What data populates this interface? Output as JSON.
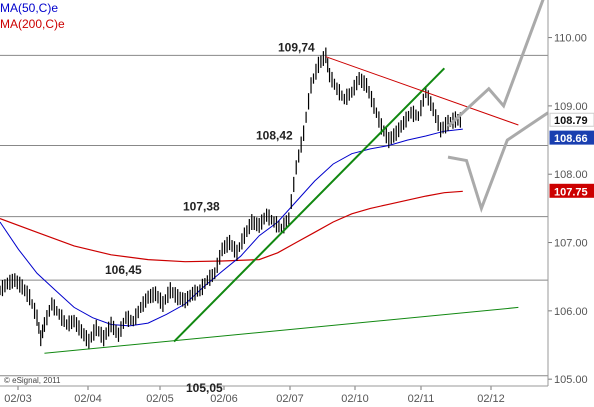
{
  "chart_data": {
    "type": "candlestick",
    "legend": [
      {
        "name": "MA(50,C)e",
        "color": "#0000cc"
      },
      {
        "name": "MA(200,C)e",
        "color": "#cc0000"
      }
    ],
    "x_ticks": [
      "02/03",
      "02/04",
      "02/05",
      "02/06",
      "02/07",
      "02/10",
      "02/11",
      "02/12"
    ],
    "y_ticks": [
      "105.00",
      "106.00",
      "107.00",
      "108.00",
      "109.00",
      "110.00"
    ],
    "ylim": [
      104.9,
      110.55
    ],
    "credit": "© eSignal, 2011",
    "level_labels": [
      {
        "text": "109,74",
        "price": 109.74
      },
      {
        "text": "108,42",
        "price": 108.42
      },
      {
        "text": "107,38",
        "price": 107.38
      },
      {
        "text": "106,45",
        "price": 106.45
      },
      {
        "text": "105,05",
        "price": 105.05
      }
    ],
    "horizontal_levels": [
      109.74,
      108.42,
      107.38,
      106.45,
      105.05
    ],
    "price_tags": [
      {
        "text": "108.79",
        "price": 108.79,
        "color": "#111111",
        "bg": "#ffffff"
      },
      {
        "text": "108.66",
        "price": 108.66,
        "color": "#ffffff",
        "bg": "#1a3fb0"
      },
      {
        "text": "107.75",
        "price": 107.75,
        "color": "#ffffff",
        "bg": "#cc0000"
      }
    ],
    "trendlines": [
      {
        "name": "support-steep",
        "color": "#118811",
        "width": 2,
        "from": [
          47,
          105.55
        ],
        "to": [
          120,
          109.55
        ]
      },
      {
        "name": "support-long",
        "color": "#118811",
        "width": 1,
        "from": [
          12,
          105.38
        ],
        "to": [
          140,
          106.05
        ]
      },
      {
        "name": "resistance-upper",
        "color": "#cc0000",
        "width": 1,
        "from": [
          88,
          109.72
        ],
        "to": [
          140,
          108.72
        ]
      }
    ],
    "ma50": [
      [
        0,
        107.3
      ],
      [
        5,
        106.9
      ],
      [
        10,
        106.55
      ],
      [
        15,
        106.3
      ],
      [
        20,
        106.05
      ],
      [
        25,
        105.9
      ],
      [
        30,
        105.8
      ],
      [
        35,
        105.78
      ],
      [
        40,
        105.82
      ],
      [
        45,
        105.95
      ],
      [
        50,
        106.1
      ],
      [
        55,
        106.35
      ],
      [
        60,
        106.58
      ],
      [
        65,
        106.8
      ],
      [
        70,
        107.1
      ],
      [
        75,
        107.3
      ],
      [
        80,
        107.6
      ],
      [
        85,
        107.9
      ],
      [
        90,
        108.15
      ],
      [
        95,
        108.3
      ],
      [
        100,
        108.37
      ],
      [
        105,
        108.42
      ],
      [
        110,
        108.5
      ],
      [
        115,
        108.56
      ],
      [
        120,
        108.63
      ],
      [
        125,
        108.66
      ]
    ],
    "ma200": [
      [
        0,
        107.35
      ],
      [
        10,
        107.15
      ],
      [
        20,
        106.95
      ],
      [
        30,
        106.82
      ],
      [
        40,
        106.75
      ],
      [
        50,
        106.72
      ],
      [
        60,
        106.73
      ],
      [
        70,
        106.75
      ],
      [
        75,
        106.85
      ],
      [
        80,
        107.0
      ],
      [
        85,
        107.15
      ],
      [
        90,
        107.3
      ],
      [
        95,
        107.42
      ],
      [
        100,
        107.5
      ],
      [
        105,
        107.56
      ],
      [
        110,
        107.62
      ],
      [
        115,
        107.68
      ],
      [
        120,
        107.73
      ],
      [
        125,
        107.75
      ]
    ],
    "ohlc_path": [
      [
        0,
        106.3
      ],
      [
        2,
        106.4
      ],
      [
        4,
        106.45
      ],
      [
        6,
        106.35
      ],
      [
        8,
        106.2
      ],
      [
        10,
        105.9
      ],
      [
        11,
        105.6
      ],
      [
        12,
        105.8
      ],
      [
        14,
        106.1
      ],
      [
        16,
        105.95
      ],
      [
        18,
        105.8
      ],
      [
        20,
        105.85
      ],
      [
        22,
        105.7
      ],
      [
        24,
        105.55
      ],
      [
        26,
        105.75
      ],
      [
        28,
        105.6
      ],
      [
        30,
        105.8
      ],
      [
        32,
        105.65
      ],
      [
        34,
        105.9
      ],
      [
        36,
        105.85
      ],
      [
        38,
        106.05
      ],
      [
        40,
        106.2
      ],
      [
        42,
        106.25
      ],
      [
        44,
        106.1
      ],
      [
        46,
        106.3
      ],
      [
        48,
        106.2
      ],
      [
        50,
        106.15
      ],
      [
        52,
        106.25
      ],
      [
        54,
        106.3
      ],
      [
        56,
        106.45
      ],
      [
        58,
        106.55
      ],
      [
        60,
        106.9
      ],
      [
        62,
        107.0
      ],
      [
        64,
        106.85
      ],
      [
        66,
        107.1
      ],
      [
        68,
        107.3
      ],
      [
        70,
        107.25
      ],
      [
        72,
        107.4
      ],
      [
        74,
        107.3
      ],
      [
        76,
        107.2
      ],
      [
        78,
        107.35
      ],
      [
        80,
        108.1
      ],
      [
        82,
        108.6
      ],
      [
        84,
        109.3
      ],
      [
        86,
        109.6
      ],
      [
        88,
        109.74
      ],
      [
        89,
        109.45
      ],
      [
        91,
        109.25
      ],
      [
        93,
        109.1
      ],
      [
        95,
        109.2
      ],
      [
        97,
        109.4
      ],
      [
        99,
        109.3
      ],
      [
        101,
        109.0
      ],
      [
        103,
        108.7
      ],
      [
        105,
        108.5
      ],
      [
        107,
        108.6
      ],
      [
        109,
        108.75
      ],
      [
        111,
        108.9
      ],
      [
        113,
        108.85
      ],
      [
        115,
        109.2
      ],
      [
        117,
        108.95
      ],
      [
        119,
        108.65
      ],
      [
        121,
        108.75
      ],
      [
        123,
        108.8
      ],
      [
        125,
        108.79
      ]
    ],
    "projection": {
      "color": "#aaaaaa",
      "upper": [
        [
          121,
          108.7
        ],
        [
          132,
          109.25
        ],
        [
          136,
          109.0
        ],
        [
          148,
          110.75
        ]
      ],
      "lower": [
        [
          121,
          108.25
        ],
        [
          126,
          108.2
        ],
        [
          130,
          107.5
        ],
        [
          137,
          108.5
        ],
        [
          148,
          108.9
        ]
      ]
    }
  }
}
